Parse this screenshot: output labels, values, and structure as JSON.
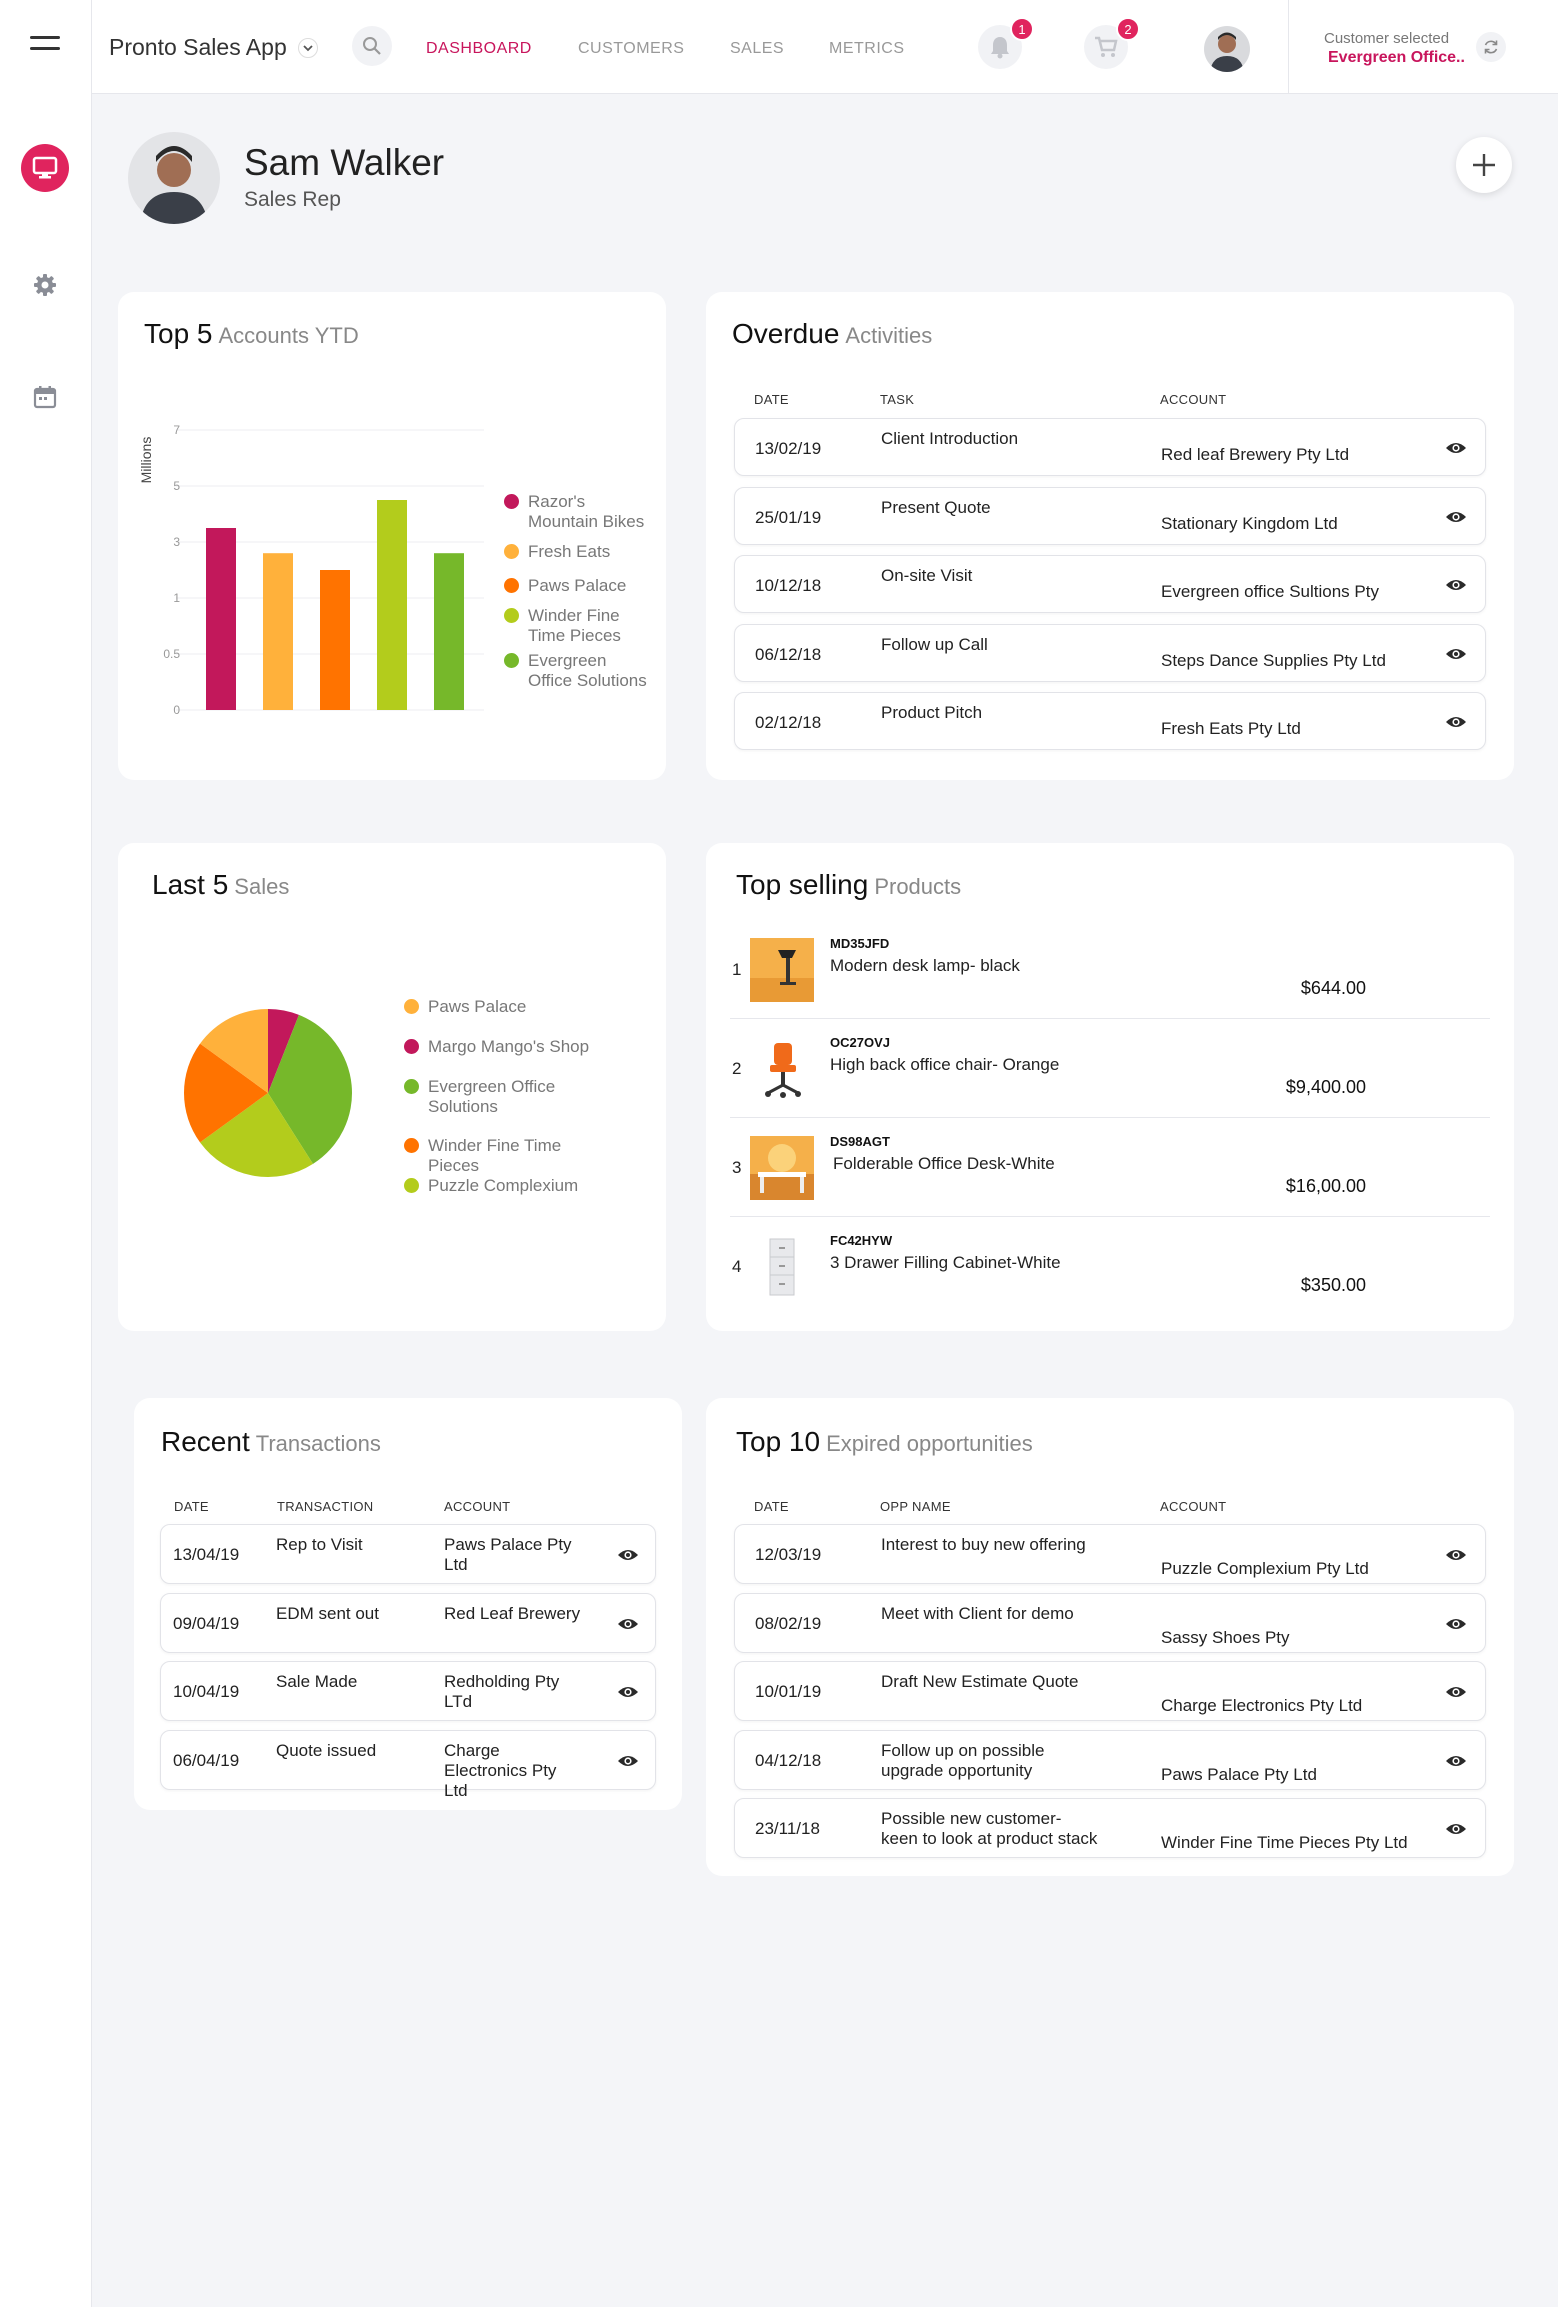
{
  "app": {
    "title": "Pronto Sales App"
  },
  "nav": {
    "tabs": [
      {
        "label": "DASHBOARD",
        "active": true
      },
      {
        "label": "CUSTOMERS",
        "active": false
      },
      {
        "label": "SALES",
        "active": false
      },
      {
        "label": "METRICS",
        "active": false
      }
    ],
    "notifications_count": "1",
    "cart_count": "2"
  },
  "customer": {
    "label": "Customer selected",
    "value": "Evergreen Office.."
  },
  "profile": {
    "name": "Sam Walker",
    "role": "Sales Rep"
  },
  "top5": {
    "title": "Top 5",
    "subtitle": "Accounts YTD",
    "ylabel": "Millions",
    "ticks": [
      "7",
      "5",
      "3",
      "1",
      "0.5",
      "0"
    ]
  },
  "chart_data": [
    {
      "type": "bar",
      "title": "Top 5",
      "subtitle": "Accounts YTD",
      "ylabel": "Millions",
      "tick_labels": [
        "0",
        "0.5",
        "1",
        "3",
        "5",
        "7"
      ],
      "categories": [
        "Razor's Mountain Bikes",
        "Fresh Eats",
        "Paws Palace",
        "Winder Fine Time Pieces",
        "Evergreen Office Solutions"
      ],
      "values": [
        3.5,
        2.6,
        2.0,
        4.5,
        2.6
      ],
      "colors": [
        "#c2185b",
        "#ffb13b",
        "#ff7300",
        "#b3cc1c",
        "#76b82a"
      ],
      "legend": "right"
    },
    {
      "type": "pie",
      "title": "Last 5",
      "subtitle": "Sales",
      "categories": [
        "Paws Palace",
        "Margo Mango's Shop",
        "Evergreen Office Solutions",
        "Winder Fine Time Pieces",
        "Puzzle Complexium"
      ],
      "values": [
        15,
        6,
        35,
        20,
        24
      ],
      "colors": [
        "#ffb13b",
        "#c2185b",
        "#76b82a",
        "#ff7300",
        "#b3cc1c"
      ],
      "legend": "right"
    }
  ],
  "overdue": {
    "title": "Overdue",
    "subtitle": "Activities",
    "headers": {
      "date": "DATE",
      "task": "TASK",
      "account": "ACCOUNT"
    },
    "rows": [
      {
        "date": "13/02/19",
        "task": "Client Introduction",
        "account": "Red leaf Brewery Pty Ltd"
      },
      {
        "date": "25/01/19",
        "task": "Present Quote",
        "account": "Stationary Kingdom Ltd"
      },
      {
        "date": "10/12/18",
        "task": "On-site Visit",
        "account": "Evergreen office Sultions  Pty"
      },
      {
        "date": "06/12/18",
        "task": "Follow up Call",
        "account": "Steps Dance Supplies Pty Ltd"
      },
      {
        "date": "02/12/18",
        "task": "Product Pitch",
        "account": "Fresh Eats Pty Ltd"
      }
    ]
  },
  "last5": {
    "title": "Last 5",
    "subtitle": "Sales"
  },
  "top_selling": {
    "title": "Top selling",
    "subtitle": "Products",
    "items": [
      {
        "idx": "1",
        "code": "MD35JFD",
        "name": "Modern desk lamp- black",
        "price": "$644.00"
      },
      {
        "idx": "2",
        "code": "OC27OVJ",
        "name": "High back office chair- Orange",
        "price": "$9,400.00"
      },
      {
        "idx": "3",
        "code": "DS98AGT",
        "name": "Folderable Office Desk-White",
        "price": "$16,00.00"
      },
      {
        "idx": "4",
        "code": "FC42HYW",
        "name": "3 Drawer Filling Cabinet-White",
        "price": "$350.00"
      }
    ]
  },
  "recent": {
    "title": "Recent",
    "subtitle": "Transactions",
    "headers": {
      "date": "DATE",
      "transaction": "TRANSACTION",
      "account": "ACCOUNT"
    },
    "rows": [
      {
        "date": "13/04/19",
        "transaction": "Rep to Visit",
        "account": "Paws Palace Pty Ltd"
      },
      {
        "date": "09/04/19",
        "transaction": "EDM sent out",
        "account": "Red Leaf Brewery"
      },
      {
        "date": "10/04/19",
        "transaction": "Sale Made",
        "account": "Redholding Pty LTd"
      },
      {
        "date": "06/04/19",
        "transaction": "Quote issued",
        "account": "Charge Electronics Pty Ltd"
      }
    ]
  },
  "top10": {
    "title": "Top 10",
    "subtitle": "Expired opportunities",
    "headers": {
      "date": "DATE",
      "opp": "OPP NAME",
      "account": "ACCOUNT"
    },
    "rows": [
      {
        "date": "12/03/19",
        "opp": "Interest to buy new offering",
        "account": "Puzzle Complexium Pty Ltd"
      },
      {
        "date": "08/02/19",
        "opp": "Meet with Client for demo",
        "account": "Sassy Shoes Pty"
      },
      {
        "date": "10/01/19",
        "opp": "Draft New Estimate Quote",
        "account": "Charge Electronics Pty Ltd"
      },
      {
        "date": "04/12/18",
        "opp": "Follow up on possible upgrade opportunity",
        "account": "Paws Palace Pty Ltd"
      },
      {
        "date": "23/11/18",
        "opp": "Possible new customer- keen to look at product stack",
        "account": "Winder Fine Time Pieces Pty Ltd"
      }
    ]
  },
  "icons": {
    "menu": "hamburger-icon",
    "dashboard": "monitor-icon",
    "settings": "gear-icon",
    "calendar": "calendar-icon",
    "search": "search-icon",
    "bell": "bell-icon",
    "cart": "cart-icon",
    "refresh": "refresh-icon",
    "add": "plus-icon",
    "view": "eye-icon"
  },
  "colors": {
    "accent": "#e0245e",
    "brand_text": "#c8155c"
  }
}
